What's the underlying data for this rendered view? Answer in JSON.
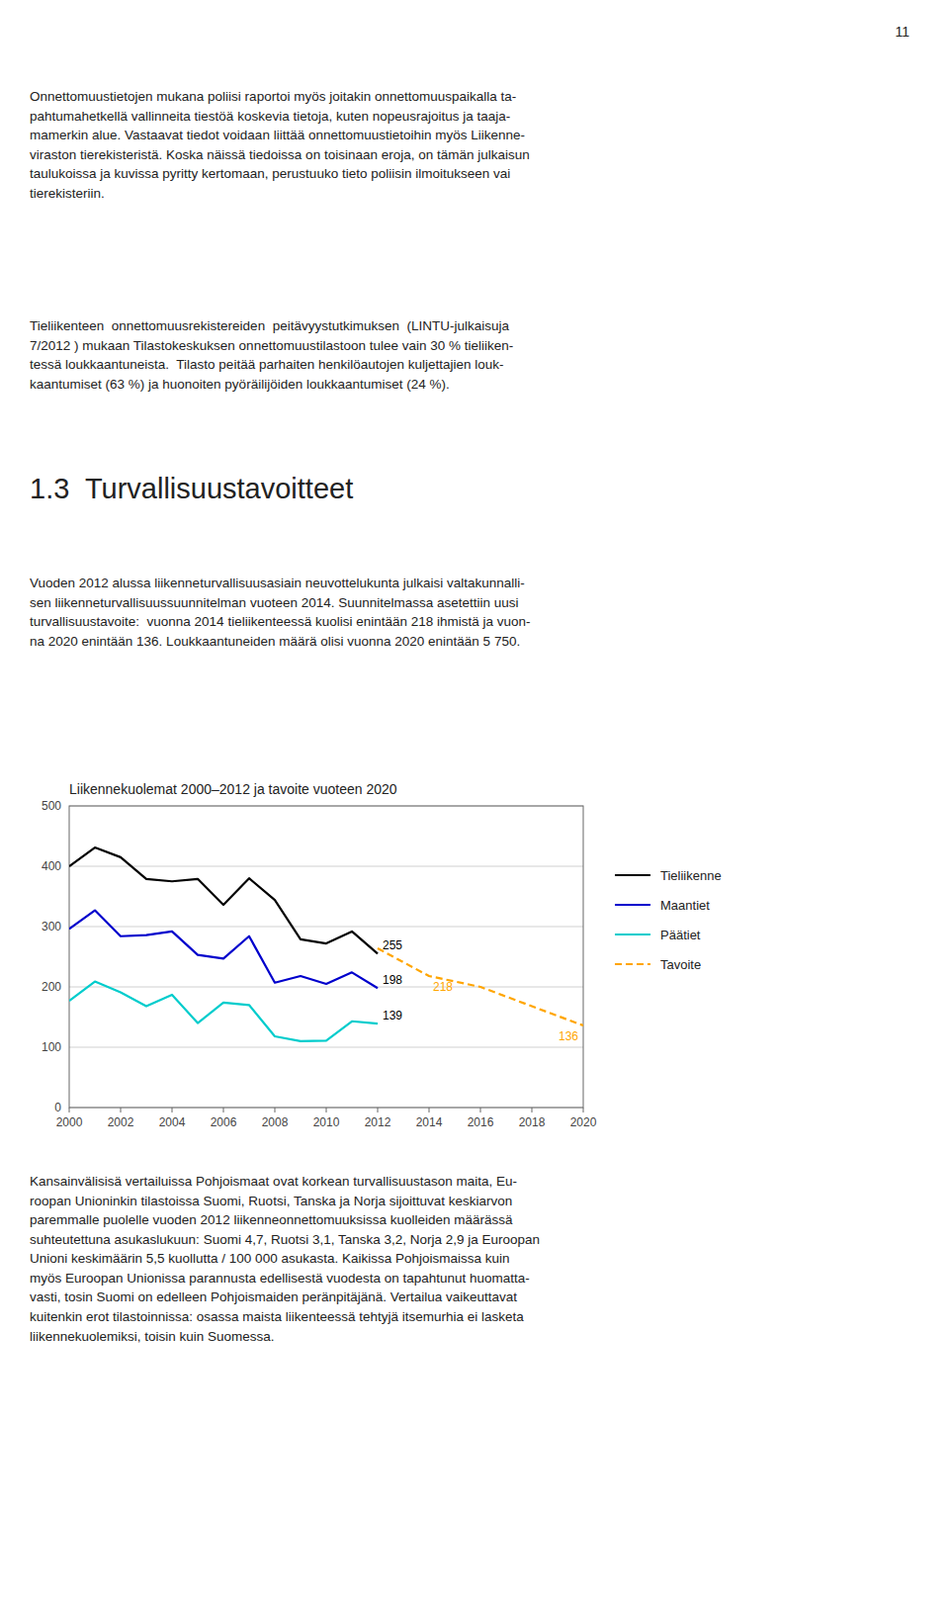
{
  "page_number": "11",
  "paragraphs": [
    "Onnettomuustietojen mukana poliisi raportoi myös joitakin onnettomuuspaikalla ta-\npahtumahetkellä vallinneita tiestöä koskevia tietoja, kuten nopeusrajoitus ja taaja-\nmamerkin alue. Vastaavat tiedot voidaan liittää onnettomuustietoihin myös Liikenne-\nviraston tierekisteristä. Koska näissä tiedoissa on toisinaan eroja, on tämän julkaisun\ntaulukoissa ja kuvissa pyritty kertomaan, perustuuko tieto poliisin ilmoitukseen vai\ntierekisteriin.",
    "Tieliikenteen  onnettomuusrekistereiden  peitävyystutkimuksen  (LINTU-julkaisuja\n7/2012 ) mukaan Tilastokeskuksen onnettomuustilastoon tulee vain 30 % tieliiken-\ntessä loukkaantuneista.  Tilasto peitää parhaiten henkilöautojen kuljettajien louk-\nkaantumiset (63 %) ja huonoiten pyöräilijöiden loukkaantumiset (24 %).",
    "Vuoden 2012 alussa liikenneturvallisuusasiain neuvottelukunta julkaisi valtakunnalli-\nsen liikenneturvallisuussuunnitelman vuoteen 2014. Suunnitelmassa asetettiin uusi\nturvallisuustavoite:  vuonna 2014 tieliikenteessä kuolisi enintään 218 ihmistä ja vuon-\nna 2020 enintään 136. Loukkaantuneiden määrä olisi vuonna 2020 enintään 5 750.",
    "Kansainvälisisä vertailuissa Pohjoismaat ovat korkean turvallisuustason maita, Eu-\nroopan Unioninkin tilastoissa Suomi, Ruotsi, Tanska ja Norja sijoittuvat keskiarvon\nparemmalle puolelle vuoden 2012 liikenneonnettomuuksissa kuolleiden määrässä\nsuhteutettuna asukaslukuun: Suomi 4,7, Ruotsi 3,1, Tanska 3,2, Norja 2,9 ja Euroopan\nUnioni keskimäärin 5,5 kuollutta / 100 000 asukasta. Kaikissa Pohjoismaissa kuin\nmyös Euroopan Unionissa parannusta edellisestä vuodesta on tapahtunut huomatta-\nvasti, tosin Suomi on edelleen Pohjoismaiden peränpitäjänä. Vertailua vaikeuttavat\nkuitenkin erot tilastoinnissa: osassa maista liikenteessä tehtyjä itsemurhia ei lasketa\nliikennekuolemiksi, toisin kuin Suomessa."
  ],
  "section_heading": "1.3  Turvallisuustavoitteet",
  "chart_data": {
    "type": "line",
    "title": "Liikennekuolemat 2000–2012 ja tavoite vuoteen 2020",
    "series": [
      {
        "name": "Tieliikenne",
        "color": "#000000",
        "line_style": "solid",
        "x": [
          2000,
          2001,
          2002,
          2003,
          2004,
          2005,
          2006,
          2007,
          2008,
          2009,
          2010,
          2011,
          2012
        ],
        "values": [
          400,
          431,
          415,
          379,
          375,
          379,
          336,
          380,
          344,
          279,
          272,
          292,
          255
        ]
      },
      {
        "name": "Maantiet",
        "color": "#0000CC",
        "line_style": "solid",
        "x": [
          2000,
          2001,
          2002,
          2003,
          2004,
          2005,
          2006,
          2007,
          2008,
          2009,
          2010,
          2011,
          2012
        ],
        "values": [
          296,
          327,
          284,
          286,
          292,
          253,
          247,
          284,
          207,
          218,
          205,
          224,
          198
        ]
      },
      {
        "name": "Päätiet",
        "color": "#00CCCC",
        "line_style": "solid",
        "x": [
          2000,
          2001,
          2002,
          2003,
          2004,
          2005,
          2006,
          2007,
          2008,
          2009,
          2010,
          2011,
          2012
        ],
        "values": [
          177,
          209,
          191,
          168,
          187,
          140,
          174,
          170,
          118,
          110,
          111,
          143,
          139
        ]
      },
      {
        "name": "Tavoite",
        "color": "#FFA500",
        "line_style": "dashed",
        "x": [
          2012,
          2014,
          2016,
          2018,
          2020
        ],
        "values": [
          264,
          218,
          200,
          168,
          136
        ]
      }
    ],
    "annotations": [
      {
        "text": "255",
        "x": 2012,
        "y": 255,
        "color": "#000000"
      },
      {
        "text": "198",
        "x": 2012,
        "y": 198,
        "color": "#000000"
      },
      {
        "text": "139",
        "x": 2012,
        "y": 139,
        "color": "#000000"
      },
      {
        "text": "218",
        "x": 2014,
        "y": 218,
        "color": "#FFA500"
      },
      {
        "text": "136",
        "x": 2020,
        "y": 136,
        "color": "#FFA500"
      }
    ],
    "xlim": [
      2000,
      2020
    ],
    "xticks": [
      2000,
      2002,
      2004,
      2006,
      2008,
      2010,
      2012,
      2014,
      2016,
      2018,
      2020
    ],
    "ylim": [
      0,
      500
    ],
    "yticks": [
      0,
      100,
      200,
      300,
      400,
      500
    ],
    "grid": true,
    "legend": "right"
  }
}
